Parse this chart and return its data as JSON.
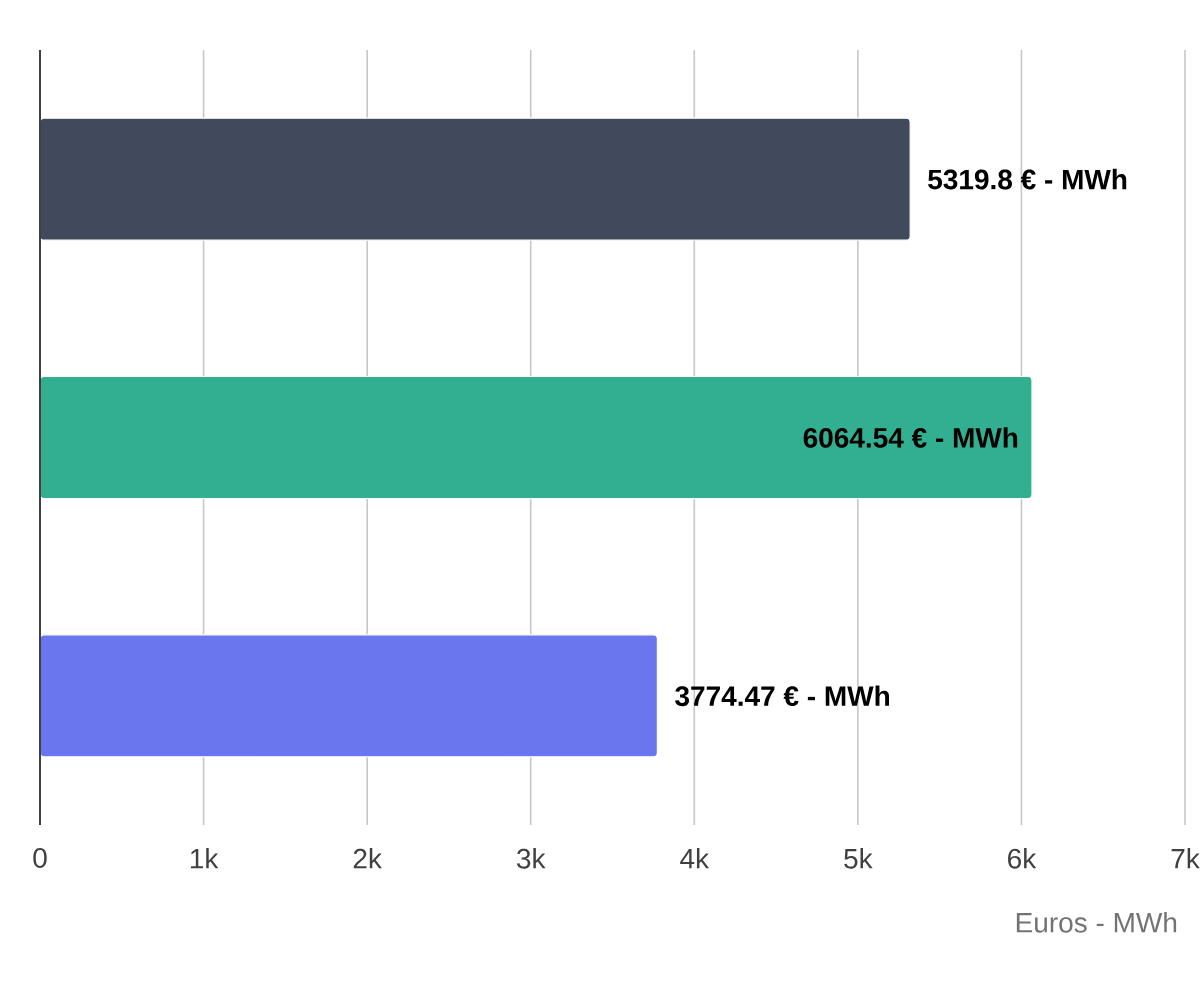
{
  "chart_data": {
    "type": "bar",
    "orientation": "horizontal",
    "categories": [
      null,
      null,
      null
    ],
    "values": [
      5319.8,
      6064.54,
      3774.47
    ],
    "colors": [
      "#414a5c",
      "#32af90",
      "#6976ee"
    ],
    "value_labels": [
      "5319.8 € - MWh",
      "6064.54 € - MWh",
      "3774.47 € - MWh"
    ],
    "xlabel": "Euros - MWh",
    "xlim": [
      0,
      7000
    ],
    "xticks": [
      0,
      {
        "value": 1000,
        "label": "1k"
      },
      {
        "value": 2000,
        "label": "2k"
      },
      {
        "value": 3000,
        "label": "3k"
      },
      {
        "value": 4000,
        "label": "4k"
      },
      {
        "value": 5000,
        "label": "5k"
      },
      {
        "value": 6000,
        "label": "6k"
      },
      {
        "value": 7000,
        "label": "7k"
      }
    ],
    "grid": "x"
  }
}
